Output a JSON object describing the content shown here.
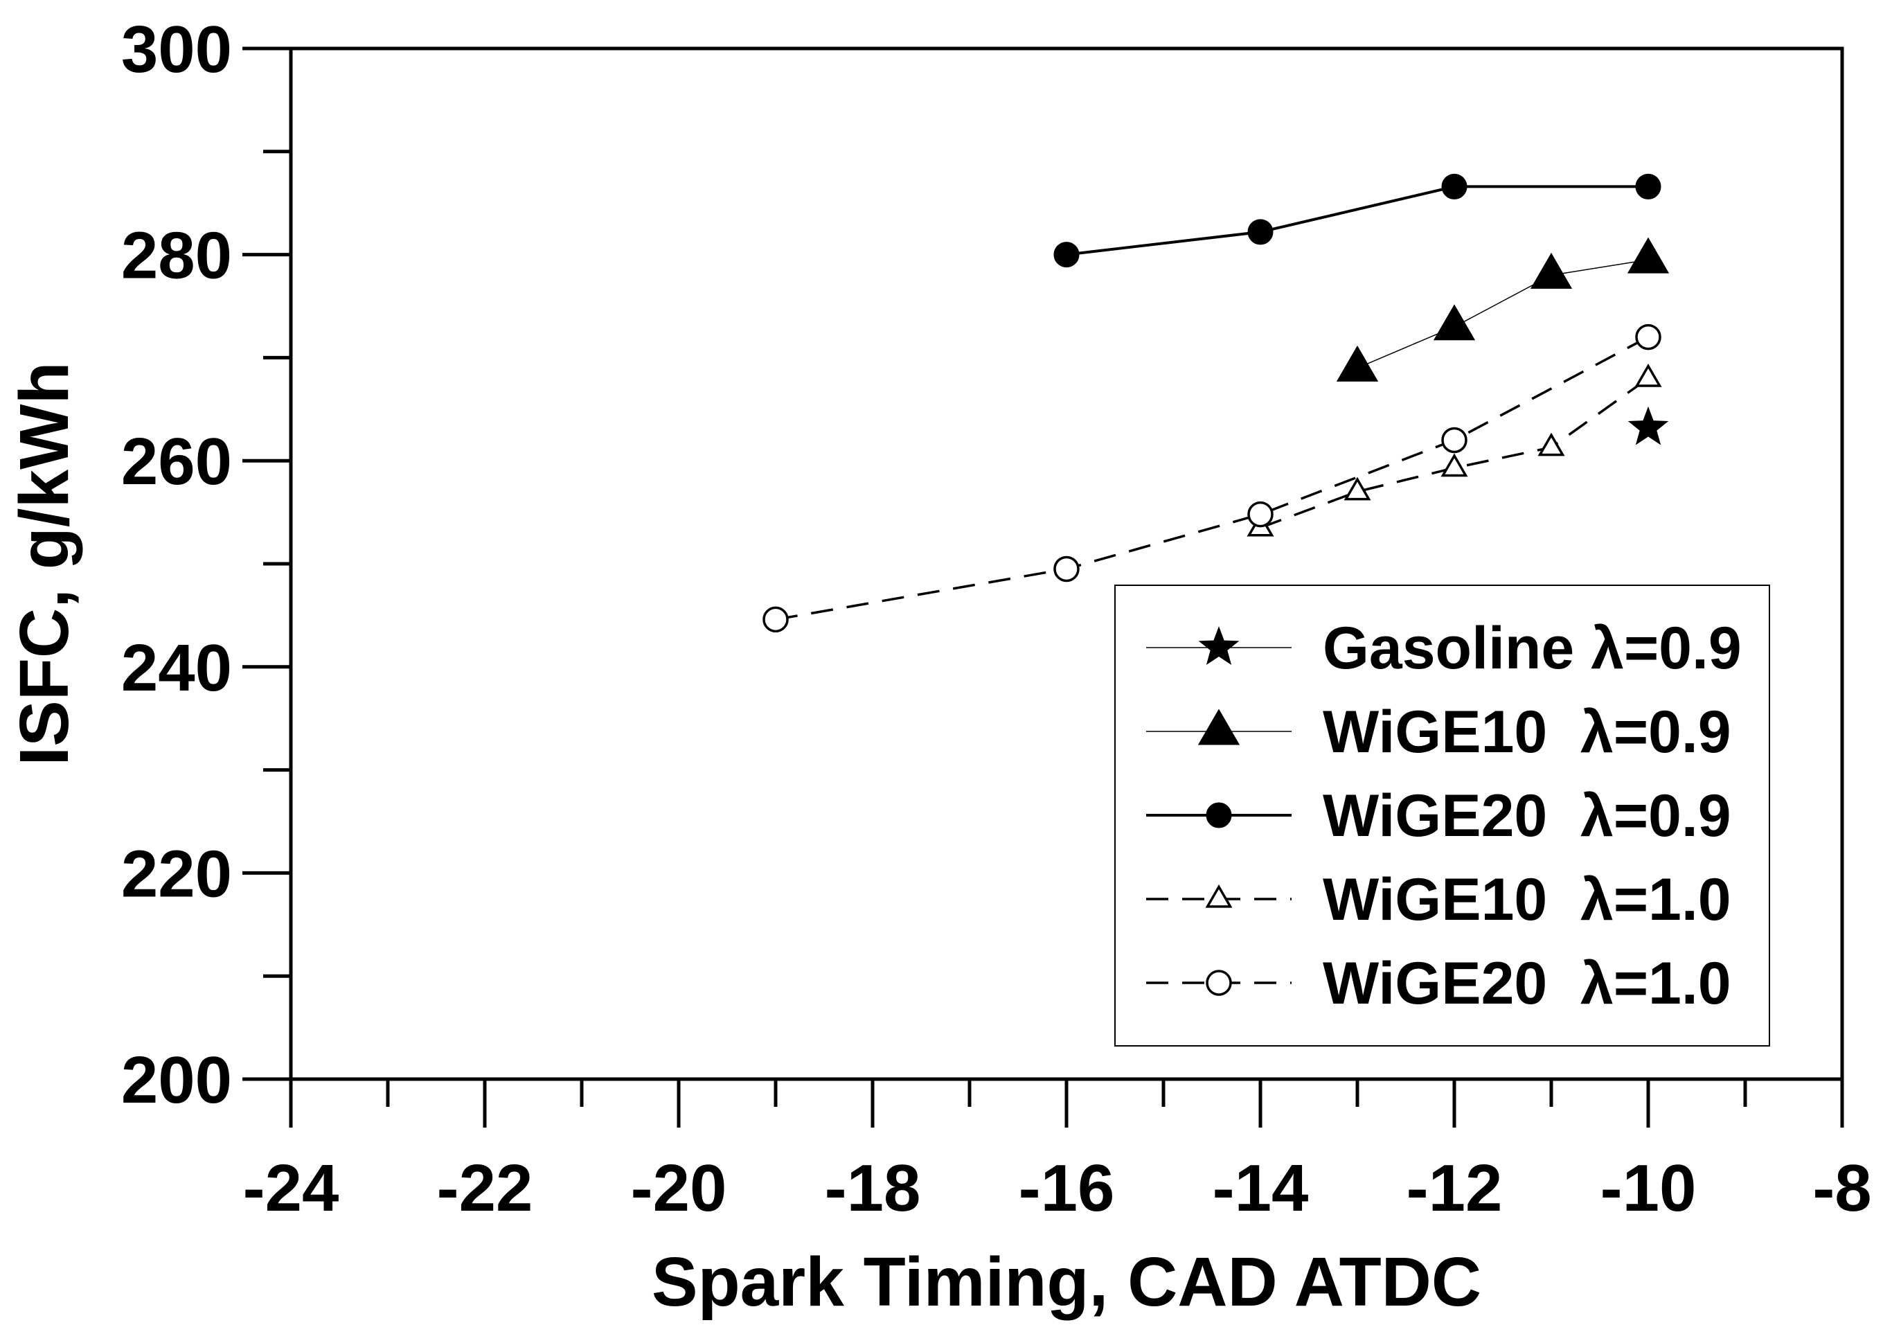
{
  "chart_data": {
    "type": "line",
    "title": "",
    "xlabel": "Spark Timing, CAD ATDC",
    "ylabel": "ISFC, g/kWh",
    "xlim": [
      -24,
      -8
    ],
    "ylim": [
      200,
      300
    ],
    "xticks": [
      -24,
      -22,
      -20,
      -18,
      -16,
      -14,
      -12,
      -10,
      -8
    ],
    "xtick_labels": [
      "-24",
      "-22",
      "-20",
      "-18",
      "-16",
      "-14",
      "-12",
      "-10",
      "-8"
    ],
    "yticks": [
      200,
      220,
      240,
      260,
      280,
      300
    ],
    "ytick_labels": [
      "200",
      "220",
      "240",
      "260",
      "280",
      "300"
    ],
    "x_minor_step": 1,
    "y_minor_step": 10,
    "grid": false,
    "legend_position": "lower-right",
    "series": [
      {
        "name": "Gasoline λ=0.9",
        "marker": "star",
        "filled": true,
        "line": "solid-thin",
        "x": [
          -10
        ],
        "y": [
          263.2
        ]
      },
      {
        "name": "WiGE10  λ=0.9",
        "marker": "triangle",
        "filled": true,
        "line": "solid-thin",
        "x": [
          -13,
          -12,
          -11,
          -10
        ],
        "y": [
          269,
          273,
          278,
          279.5
        ]
      },
      {
        "name": "WiGE20  λ=0.9",
        "marker": "circle",
        "filled": true,
        "line": "solid",
        "x": [
          -16,
          -14,
          -12,
          -10
        ],
        "y": [
          280,
          282.2,
          286.6,
          286.6
        ]
      },
      {
        "name": "WiGE10  λ=1.0",
        "marker": "triangle",
        "filled": false,
        "line": "dashed",
        "x": [
          -14,
          -13,
          -12,
          -11,
          -10
        ],
        "y": [
          253.5,
          257,
          259.3,
          261.3,
          268
        ]
      },
      {
        "name": "WiGE20  λ=1.0",
        "marker": "circle",
        "filled": false,
        "line": "dashed",
        "x": [
          -19,
          -16,
          -14,
          -12,
          -10
        ],
        "y": [
          244.6,
          249.5,
          254.8,
          262,
          272
        ]
      }
    ]
  }
}
